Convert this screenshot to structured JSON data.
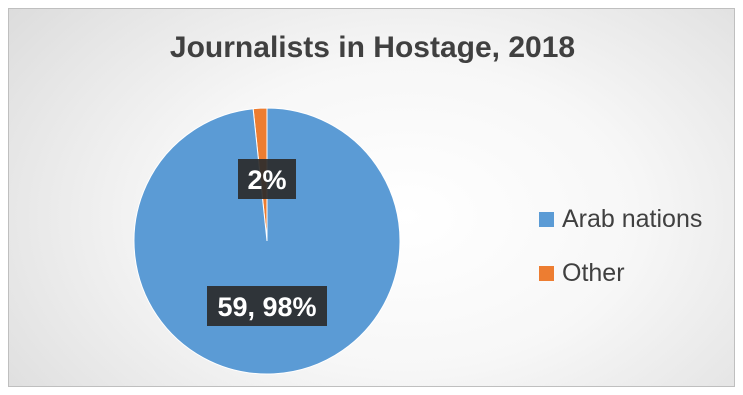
{
  "chart_data": {
    "type": "pie",
    "title": "Journalists in Hostage, 2018",
    "slices": [
      {
        "name": "Arab nations",
        "value": 59,
        "percent": 98,
        "label": "59, 98%",
        "color": "#5b9bd5"
      },
      {
        "name": "Other",
        "value": 1,
        "percent": 2,
        "label": "2%",
        "color": "#ed7d31"
      }
    ],
    "legend_position": "right",
    "data_label_style": "dark boxed"
  }
}
